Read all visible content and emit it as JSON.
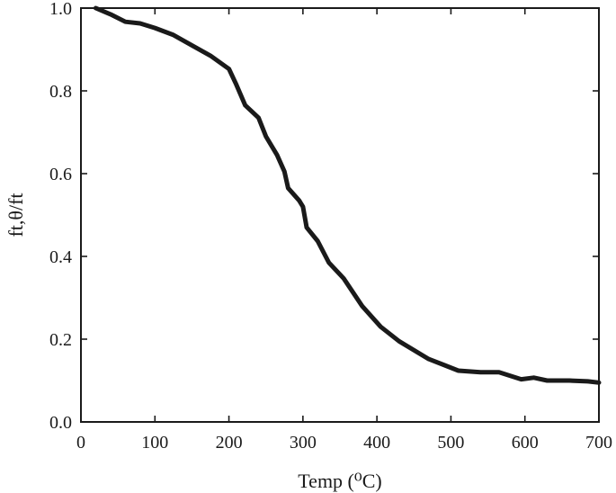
{
  "chart_data": {
    "type": "line",
    "xlabel": "Temp (⁰C)",
    "ylabel": "ft,θ/ft",
    "xlim": [
      0,
      700
    ],
    "ylim": [
      0,
      1.0
    ],
    "xticks": [
      0,
      100,
      200,
      300,
      400,
      500,
      600,
      700
    ],
    "yticks": [
      0.0,
      0.2,
      0.4,
      0.6,
      0.8,
      1.0
    ],
    "xtick_labels": [
      "0",
      "100",
      "200",
      "300",
      "400",
      "500",
      "600",
      "700"
    ],
    "ytick_labels": [
      "0.0",
      "0.2",
      "0.4",
      "0.6",
      "0.8",
      "1.0"
    ],
    "grid": false,
    "series": [
      {
        "color": "#1a1a1a",
        "x": [
          20,
          40,
          60,
          80,
          100,
          125,
          150,
          175,
          200,
          210,
          222,
          240,
          250,
          265,
          275,
          280,
          290,
          295,
          300,
          305,
          320,
          335,
          355,
          380,
          405,
          430,
          470,
          490,
          510,
          540,
          565,
          595,
          612,
          630,
          660,
          685,
          700
        ],
        "y": [
          1.0,
          0.985,
          0.967,
          0.963,
          0.952,
          0.935,
          0.91,
          0.885,
          0.853,
          0.815,
          0.765,
          0.735,
          0.69,
          0.645,
          0.605,
          0.565,
          0.545,
          0.535,
          0.52,
          0.47,
          0.437,
          0.385,
          0.347,
          0.28,
          0.23,
          0.195,
          0.152,
          0.138,
          0.124,
          0.12,
          0.12,
          0.103,
          0.107,
          0.1,
          0.1,
          0.098,
          0.095
        ]
      }
    ]
  }
}
